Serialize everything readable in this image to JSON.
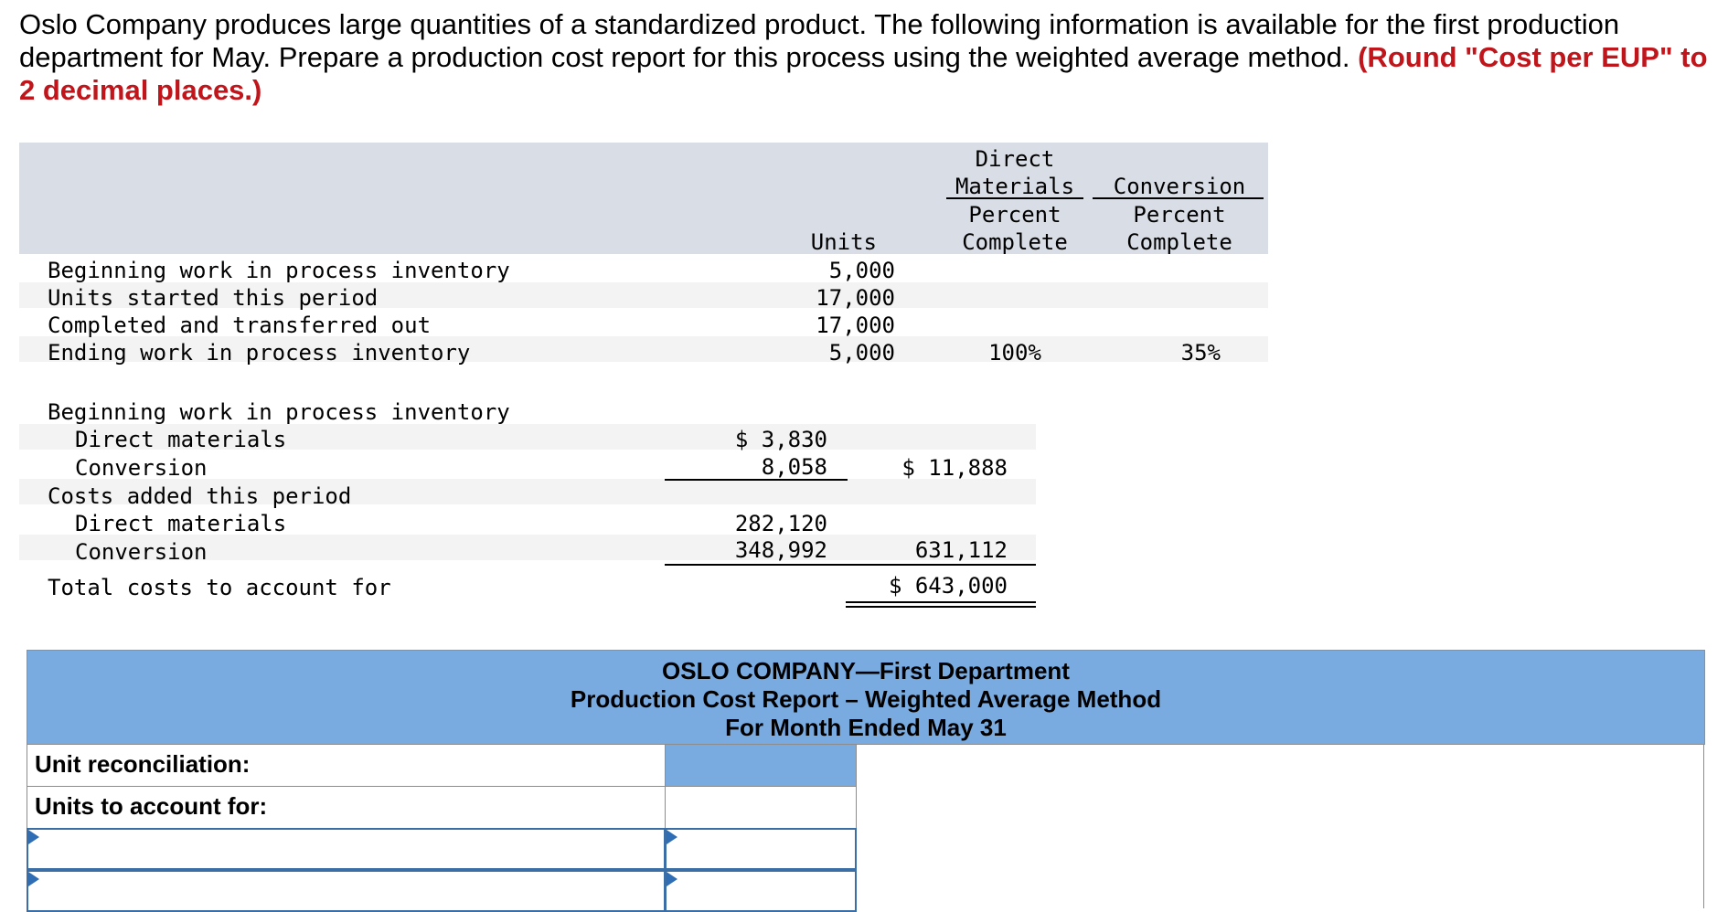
{
  "problem": {
    "text": "Oslo Company produces large quantities of a standardized product. The following information is available for the first production department for May. Prepare a production cost report for this process using the weighted average method. ",
    "requirement": "(Round \"Cost per EUP\" to 2 decimal places.)"
  },
  "units_table": {
    "headers": {
      "units": "Units",
      "dm_line1": "Direct",
      "dm_line2": "Materials",
      "dm_line3": "Percent",
      "dm_line4": "Complete",
      "conv_line1": "Conversion",
      "conv_line2": "Percent",
      "conv_line3": "Complete"
    },
    "rows": [
      {
        "label": "Beginning work in process inventory",
        "units": "5,000",
        "dm": "",
        "conv": ""
      },
      {
        "label": "Units started this period",
        "units": "17,000",
        "dm": "",
        "conv": ""
      },
      {
        "label": "Completed and transferred out",
        "units": "17,000",
        "dm": "",
        "conv": ""
      },
      {
        "label": "Ending work in process inventory",
        "units": "5,000",
        "dm": "100%",
        "conv": "35%"
      }
    ]
  },
  "costs_table": {
    "beginning_label": "Beginning work in process inventory",
    "beg_dm_label": "Direct materials",
    "beg_dm_value": "$ 3,830",
    "beg_conv_label": "Conversion",
    "beg_conv_value": "8,058",
    "beg_total": "$ 11,888",
    "added_label": "Costs added this period",
    "add_dm_label": "Direct materials",
    "add_dm_value": "282,120",
    "add_conv_label": "Conversion",
    "add_conv_value": "348,992",
    "add_total": "631,112",
    "total_label": "Total costs to account for",
    "total_value": "$ 643,000"
  },
  "report": {
    "title1": "OSLO COMPANY—First Department",
    "title2": "Production Cost Report – Weighted Average Method",
    "title3": "For Month Ended May 31",
    "unit_reconciliation": "Unit reconciliation:",
    "units_to_account_for": "Units to account for:"
  }
}
